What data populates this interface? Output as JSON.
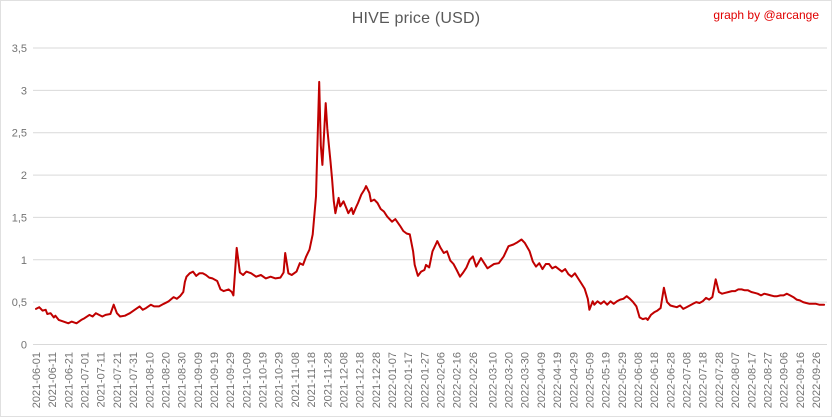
{
  "header": {
    "title": "HIVE price (USD)",
    "credit": "graph by @arcange"
  },
  "chart_data": {
    "type": "line",
    "title": "HIVE price (USD)",
    "xlabel": "",
    "ylabel": "",
    "ylim": [
      0,
      3.5
    ],
    "grid": "horizontal",
    "legend": "none",
    "decimal_separator": ",",
    "colors": {
      "line": "#C00000",
      "grid": "#D9D9D9",
      "title": "#595959",
      "axis_text": "#737373",
      "credit": "#E00000",
      "background": "#FFFFFF"
    },
    "y_ticks": [
      {
        "value": 0,
        "label": "0"
      },
      {
        "value": 0.5,
        "label": "0,5"
      },
      {
        "value": 1,
        "label": "1"
      },
      {
        "value": 1.5,
        "label": "1,5"
      },
      {
        "value": 2,
        "label": "2"
      },
      {
        "value": 2.5,
        "label": "2,5"
      },
      {
        "value": 3,
        "label": "3"
      },
      {
        "value": 3.5,
        "label": "3,5"
      }
    ],
    "x_tick_labels": [
      "2021-06-01",
      "2021-06-11",
      "2021-06-21",
      "2021-07-01",
      "2021-07-11",
      "2021-07-21",
      "2021-07-31",
      "2021-08-10",
      "2021-08-20",
      "2021-08-30",
      "2021-09-09",
      "2021-09-19",
      "2021-09-29",
      "2021-10-09",
      "2021-10-19",
      "2021-10-29",
      "2021-11-08",
      "2021-11-18",
      "2021-11-28",
      "2021-12-08",
      "2021-12-18",
      "2021-12-28",
      "2022-01-07",
      "2022-01-17",
      "2022-01-27",
      "2022-02-06",
      "2022-02-16",
      "2022-02-26",
      "2022-03-10",
      "2022-03-20",
      "2022-03-30",
      "2022-04-09",
      "2022-04-19",
      "2022-04-29",
      "2022-05-09",
      "2022-05-19",
      "2022-05-29",
      "2022-06-08",
      "2022-06-18",
      "2022-06-28",
      "2022-07-08",
      "2022-07-18",
      "2022-07-28",
      "2022-08-07",
      "2022-08-17",
      "2022-08-27",
      "2022-09-06",
      "2022-09-16",
      "2022-09-26"
    ],
    "series": [
      {
        "name": "HIVE price (USD)",
        "points": [
          [
            "2021-06-01",
            0.42
          ],
          [
            "2021-06-03",
            0.44
          ],
          [
            "2021-06-05",
            0.4
          ],
          [
            "2021-06-07",
            0.41
          ],
          [
            "2021-06-08",
            0.36
          ],
          [
            "2021-06-10",
            0.37
          ],
          [
            "2021-06-12",
            0.32
          ],
          [
            "2021-06-13",
            0.34
          ],
          [
            "2021-06-15",
            0.29
          ],
          [
            "2021-06-18",
            0.27
          ],
          [
            "2021-06-21",
            0.25
          ],
          [
            "2021-06-23",
            0.27
          ],
          [
            "2021-06-26",
            0.25
          ],
          [
            "2021-06-29",
            0.29
          ],
          [
            "2021-07-01",
            0.31
          ],
          [
            "2021-07-04",
            0.35
          ],
          [
            "2021-07-06",
            0.33
          ],
          [
            "2021-07-08",
            0.37
          ],
          [
            "2021-07-10",
            0.35
          ],
          [
            "2021-07-12",
            0.33
          ],
          [
            "2021-07-14",
            0.35
          ],
          [
            "2021-07-17",
            0.36
          ],
          [
            "2021-07-19",
            0.47
          ],
          [
            "2021-07-21",
            0.37
          ],
          [
            "2021-07-23",
            0.33
          ],
          [
            "2021-07-26",
            0.34
          ],
          [
            "2021-07-29",
            0.37
          ],
          [
            "2021-08-01",
            0.41
          ],
          [
            "2021-08-04",
            0.45
          ],
          [
            "2021-08-06",
            0.41
          ],
          [
            "2021-08-08",
            0.43
          ],
          [
            "2021-08-11",
            0.47
          ],
          [
            "2021-08-13",
            0.45
          ],
          [
            "2021-08-16",
            0.45
          ],
          [
            "2021-08-19",
            0.48
          ],
          [
            "2021-08-22",
            0.51
          ],
          [
            "2021-08-25",
            0.56
          ],
          [
            "2021-08-27",
            0.54
          ],
          [
            "2021-08-29",
            0.57
          ],
          [
            "2021-08-31",
            0.62
          ],
          [
            "2021-09-01",
            0.74
          ],
          [
            "2021-09-02",
            0.8
          ],
          [
            "2021-09-04",
            0.84
          ],
          [
            "2021-09-06",
            0.86
          ],
          [
            "2021-09-08",
            0.81
          ],
          [
            "2021-09-10",
            0.84
          ],
          [
            "2021-09-12",
            0.84
          ],
          [
            "2021-09-14",
            0.82
          ],
          [
            "2021-09-16",
            0.79
          ],
          [
            "2021-09-18",
            0.78
          ],
          [
            "2021-09-21",
            0.75
          ],
          [
            "2021-09-23",
            0.65
          ],
          [
            "2021-09-25",
            0.63
          ],
          [
            "2021-09-28",
            0.65
          ],
          [
            "2021-09-30",
            0.62
          ],
          [
            "2021-10-01",
            0.58
          ],
          [
            "2021-10-03",
            1.14
          ],
          [
            "2021-10-05",
            0.85
          ],
          [
            "2021-10-07",
            0.82
          ],
          [
            "2021-10-09",
            0.86
          ],
          [
            "2021-10-12",
            0.84
          ],
          [
            "2021-10-15",
            0.8
          ],
          [
            "2021-10-18",
            0.82
          ],
          [
            "2021-10-21",
            0.78
          ],
          [
            "2021-10-24",
            0.8
          ],
          [
            "2021-10-27",
            0.78
          ],
          [
            "2021-10-30",
            0.79
          ],
          [
            "2021-11-01",
            0.85
          ],
          [
            "2021-11-02",
            1.08
          ],
          [
            "2021-11-04",
            0.84
          ],
          [
            "2021-11-06",
            0.82
          ],
          [
            "2021-11-09",
            0.86
          ],
          [
            "2021-11-11",
            0.96
          ],
          [
            "2021-11-13",
            0.94
          ],
          [
            "2021-11-15",
            1.04
          ],
          [
            "2021-11-17",
            1.12
          ],
          [
            "2021-11-19",
            1.3
          ],
          [
            "2021-11-21",
            1.75
          ],
          [
            "2021-11-23",
            3.1
          ],
          [
            "2021-11-24",
            2.35
          ],
          [
            "2021-11-25",
            2.12
          ],
          [
            "2021-11-27",
            2.85
          ],
          [
            "2021-11-28",
            2.55
          ],
          [
            "2021-11-29",
            2.35
          ],
          [
            "2021-11-30",
            2.16
          ],
          [
            "2021-12-01",
            1.95
          ],
          [
            "2021-12-02",
            1.69
          ],
          [
            "2021-12-03",
            1.55
          ],
          [
            "2021-12-05",
            1.73
          ],
          [
            "2021-12-06",
            1.63
          ],
          [
            "2021-12-08",
            1.69
          ],
          [
            "2021-12-10",
            1.6
          ],
          [
            "2021-12-11",
            1.55
          ],
          [
            "2021-12-13",
            1.61
          ],
          [
            "2021-12-14",
            1.54
          ],
          [
            "2021-12-16",
            1.63
          ],
          [
            "2021-12-17",
            1.67
          ],
          [
            "2021-12-19",
            1.77
          ],
          [
            "2021-12-21",
            1.83
          ],
          [
            "2021-12-22",
            1.87
          ],
          [
            "2021-12-24",
            1.79
          ],
          [
            "2021-12-25",
            1.69
          ],
          [
            "2021-12-27",
            1.71
          ],
          [
            "2021-12-29",
            1.67
          ],
          [
            "2021-12-31",
            1.6
          ],
          [
            "2022-01-02",
            1.57
          ],
          [
            "2022-01-04",
            1.51
          ],
          [
            "2022-01-07",
            1.45
          ],
          [
            "2022-01-09",
            1.48
          ],
          [
            "2022-01-12",
            1.4
          ],
          [
            "2022-01-14",
            1.34
          ],
          [
            "2022-01-16",
            1.31
          ],
          [
            "2022-01-18",
            1.3
          ],
          [
            "2022-01-20",
            1.1
          ],
          [
            "2022-01-21",
            0.94
          ],
          [
            "2022-01-23",
            0.81
          ],
          [
            "2022-01-25",
            0.86
          ],
          [
            "2022-01-27",
            0.88
          ],
          [
            "2022-01-28",
            0.94
          ],
          [
            "2022-01-30",
            0.91
          ],
          [
            "2022-02-01",
            1.1
          ],
          [
            "2022-02-03",
            1.18
          ],
          [
            "2022-02-04",
            1.22
          ],
          [
            "2022-02-06",
            1.14
          ],
          [
            "2022-02-08",
            1.08
          ],
          [
            "2022-02-10",
            1.1
          ],
          [
            "2022-02-12",
            0.99
          ],
          [
            "2022-02-14",
            0.95
          ],
          [
            "2022-02-16",
            0.88
          ],
          [
            "2022-02-18",
            0.8
          ],
          [
            "2022-02-20",
            0.85
          ],
          [
            "2022-02-22",
            0.91
          ],
          [
            "2022-02-24",
            1.0
          ],
          [
            "2022-02-26",
            1.04
          ],
          [
            "2022-02-28",
            0.92
          ],
          [
            "2022-03-03",
            1.02
          ],
          [
            "2022-03-07",
            0.9
          ],
          [
            "2022-03-11",
            0.95
          ],
          [
            "2022-03-14",
            0.96
          ],
          [
            "2022-03-17",
            1.04
          ],
          [
            "2022-03-20",
            1.16
          ],
          [
            "2022-03-23",
            1.18
          ],
          [
            "2022-03-25",
            1.2
          ],
          [
            "2022-03-28",
            1.24
          ],
          [
            "2022-03-30",
            1.2
          ],
          [
            "2022-04-02",
            1.1
          ],
          [
            "2022-04-04",
            0.98
          ],
          [
            "2022-04-06",
            0.92
          ],
          [
            "2022-04-08",
            0.96
          ],
          [
            "2022-04-10",
            0.89
          ],
          [
            "2022-04-12",
            0.95
          ],
          [
            "2022-04-14",
            0.95
          ],
          [
            "2022-04-16",
            0.9
          ],
          [
            "2022-04-18",
            0.92
          ],
          [
            "2022-04-20",
            0.89
          ],
          [
            "2022-04-22",
            0.86
          ],
          [
            "2022-04-24",
            0.89
          ],
          [
            "2022-04-26",
            0.83
          ],
          [
            "2022-04-28",
            0.8
          ],
          [
            "2022-04-30",
            0.84
          ],
          [
            "2022-05-02",
            0.78
          ],
          [
            "2022-05-04",
            0.72
          ],
          [
            "2022-05-06",
            0.66
          ],
          [
            "2022-05-08",
            0.54
          ],
          [
            "2022-05-09",
            0.41
          ],
          [
            "2022-05-11",
            0.51
          ],
          [
            "2022-05-12",
            0.47
          ],
          [
            "2022-05-14",
            0.51
          ],
          [
            "2022-05-16",
            0.48
          ],
          [
            "2022-05-18",
            0.51
          ],
          [
            "2022-05-20",
            0.47
          ],
          [
            "2022-05-22",
            0.51
          ],
          [
            "2022-05-24",
            0.48
          ],
          [
            "2022-05-26",
            0.51
          ],
          [
            "2022-05-28",
            0.53
          ],
          [
            "2022-05-30",
            0.54
          ],
          [
            "2022-06-01",
            0.57
          ],
          [
            "2022-06-03",
            0.54
          ],
          [
            "2022-06-05",
            0.5
          ],
          [
            "2022-06-07",
            0.45
          ],
          [
            "2022-06-09",
            0.32
          ],
          [
            "2022-06-11",
            0.3
          ],
          [
            "2022-06-13",
            0.31
          ],
          [
            "2022-06-14",
            0.29
          ],
          [
            "2022-06-16",
            0.35
          ],
          [
            "2022-06-18",
            0.38
          ],
          [
            "2022-06-20",
            0.4
          ],
          [
            "2022-06-22",
            0.43
          ],
          [
            "2022-06-24",
            0.67
          ],
          [
            "2022-06-26",
            0.5
          ],
          [
            "2022-06-28",
            0.46
          ],
          [
            "2022-06-30",
            0.45
          ],
          [
            "2022-07-02",
            0.44
          ],
          [
            "2022-07-04",
            0.46
          ],
          [
            "2022-07-06",
            0.42
          ],
          [
            "2022-07-08",
            0.44
          ],
          [
            "2022-07-10",
            0.46
          ],
          [
            "2022-07-12",
            0.48
          ],
          [
            "2022-07-14",
            0.5
          ],
          [
            "2022-07-16",
            0.49
          ],
          [
            "2022-07-18",
            0.51
          ],
          [
            "2022-07-20",
            0.55
          ],
          [
            "2022-07-22",
            0.53
          ],
          [
            "2022-07-24",
            0.56
          ],
          [
            "2022-07-26",
            0.77
          ],
          [
            "2022-07-28",
            0.62
          ],
          [
            "2022-07-30",
            0.6
          ],
          [
            "2022-08-01",
            0.61
          ],
          [
            "2022-08-03",
            0.62
          ],
          [
            "2022-08-05",
            0.63
          ],
          [
            "2022-08-07",
            0.63
          ],
          [
            "2022-08-09",
            0.65
          ],
          [
            "2022-08-11",
            0.65
          ],
          [
            "2022-08-13",
            0.64
          ],
          [
            "2022-08-15",
            0.64
          ],
          [
            "2022-08-17",
            0.62
          ],
          [
            "2022-08-19",
            0.61
          ],
          [
            "2022-08-21",
            0.6
          ],
          [
            "2022-08-23",
            0.58
          ],
          [
            "2022-08-25",
            0.6
          ],
          [
            "2022-08-27",
            0.59
          ],
          [
            "2022-08-29",
            0.58
          ],
          [
            "2022-08-31",
            0.57
          ],
          [
            "2022-09-02",
            0.57
          ],
          [
            "2022-09-04",
            0.58
          ],
          [
            "2022-09-06",
            0.58
          ],
          [
            "2022-09-08",
            0.6
          ],
          [
            "2022-09-10",
            0.58
          ],
          [
            "2022-09-12",
            0.56
          ],
          [
            "2022-09-14",
            0.53
          ],
          [
            "2022-09-16",
            0.52
          ],
          [
            "2022-09-18",
            0.5
          ],
          [
            "2022-09-20",
            0.49
          ],
          [
            "2022-09-22",
            0.48
          ],
          [
            "2022-09-24",
            0.48
          ],
          [
            "2022-09-26",
            0.48
          ],
          [
            "2022-09-28",
            0.47
          ],
          [
            "2022-10-01",
            0.47
          ]
        ]
      }
    ]
  }
}
